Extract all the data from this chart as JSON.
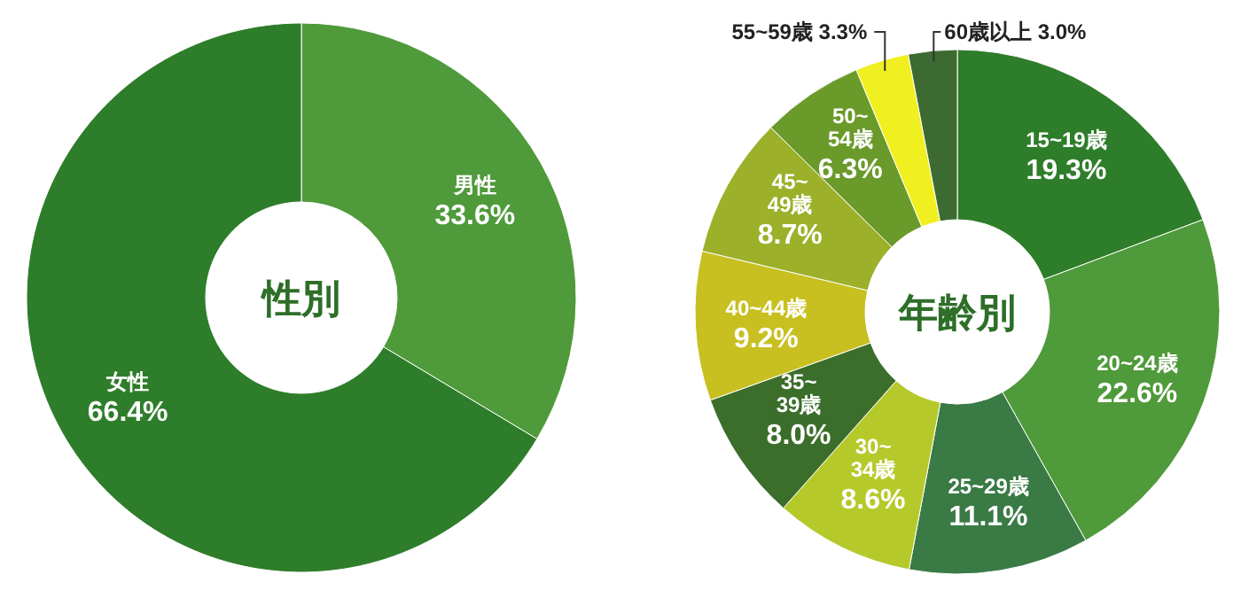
{
  "chart_data": [
    {
      "type": "donut",
      "title": "性別",
      "categories": [
        "男性",
        "女性"
      ],
      "values": [
        33.6,
        66.4
      ],
      "colors": [
        "#4f9a3a",
        "#2e7d2a"
      ],
      "value_labels": [
        "33.6%",
        "66.4%"
      ]
    },
    {
      "type": "donut",
      "title": "年齢別",
      "categories": [
        "15~19歳",
        "20~24歳",
        "25~29歳",
        "30~34歳",
        "35~39歳",
        "40~44歳",
        "45~49歳",
        "50~54歳",
        "55~59歳",
        "60歳以上"
      ],
      "values": [
        19.3,
        22.6,
        11.1,
        8.6,
        8.0,
        9.2,
        8.7,
        6.3,
        3.3,
        3.0
      ],
      "colors": [
        "#2e7d2a",
        "#4f9a3a",
        "#3a7a45",
        "#b5c92a",
        "#3b6e2a",
        "#c8c020",
        "#9cb02a",
        "#6a9a2a",
        "#f0f020",
        "#3d6a30"
      ],
      "value_labels": [
        "19.3%",
        "22.6%",
        "11.1%",
        "8.6%",
        "8.0%",
        "9.2%",
        "8.7%",
        "6.3%",
        "3.3%",
        "3.0%"
      ]
    }
  ]
}
